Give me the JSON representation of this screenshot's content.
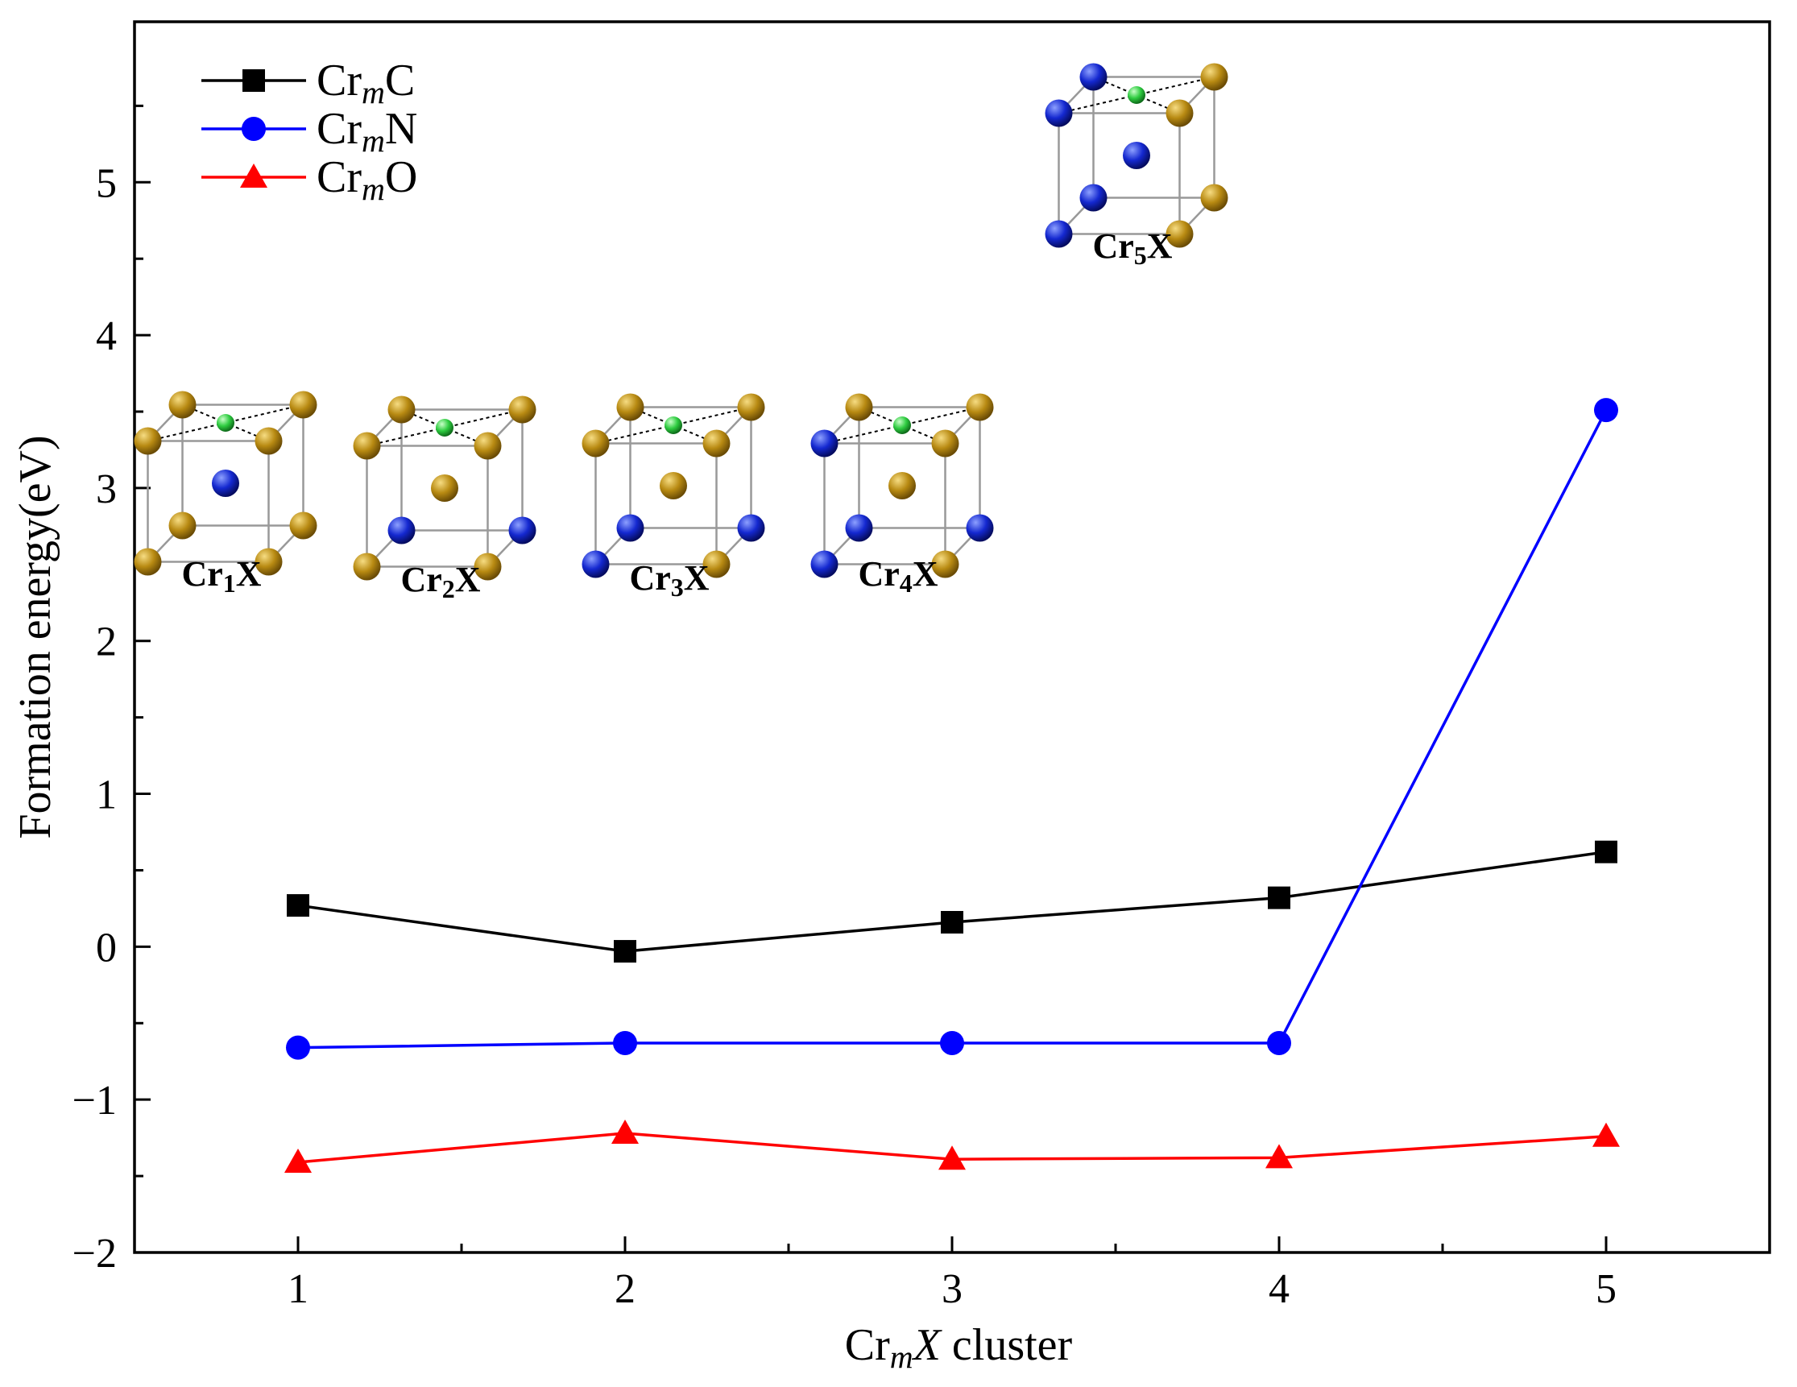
{
  "chart_data": {
    "type": "line",
    "x": [
      1,
      2,
      3,
      4,
      5
    ],
    "x_tick_labels": [
      "1",
      "2",
      "3",
      "4",
      "5"
    ],
    "xlim": [
      0.5,
      5.5
    ],
    "ylim": [
      -2.0,
      6.05
    ],
    "y_ticks": [
      -2,
      -1,
      0,
      1,
      2,
      3,
      4,
      5
    ],
    "y_tick_labels": [
      "−2",
      "−1",
      "0",
      "1",
      "2",
      "3",
      "4",
      "5"
    ],
    "ylabel": "Formation energy(eV)",
    "xlabel": {
      "prefix": "Cr",
      "sub": "m",
      "italic": "X",
      "suffix": " cluster"
    },
    "legend_position": "top-left",
    "series": [
      {
        "name": "CrmC",
        "label": {
          "base": "Cr",
          "sub": "m",
          "elem": "C"
        },
        "color": "#000000",
        "marker": "square",
        "values": [
          0.27,
          -0.03,
          0.16,
          0.32,
          0.62
        ]
      },
      {
        "name": "CrmN",
        "label": {
          "base": "Cr",
          "sub": "m",
          "elem": "N"
        },
        "color": "#0000ff",
        "marker": "circle",
        "values": [
          -0.66,
          -0.63,
          -0.63,
          -0.63,
          3.51
        ]
      },
      {
        "name": "CrmO",
        "label": {
          "base": "Cr",
          "sub": "m",
          "elem": "O"
        },
        "color": "#ff0000",
        "marker": "triangle",
        "values": [
          -1.41,
          -1.22,
          -1.39,
          -1.38,
          -1.24
        ]
      }
    ],
    "insets": [
      {
        "label": {
          "base": "Cr",
          "sub": "1",
          "suffix": "X"
        },
        "x": 1,
        "center_atom": "N",
        "corners": [
          "Cr",
          "Cr",
          "Cr",
          "Cr",
          "Cr",
          "Cr",
          "Cr",
          "Cr"
        ]
      },
      {
        "label": {
          "base": "Cr",
          "sub": "2",
          "suffix": "X"
        },
        "x": 2,
        "center_atom": "Cr",
        "corners": [
          "Cr",
          "Cr",
          "Cr",
          "Cr",
          "N",
          "Cr",
          "Cr",
          "N"
        ]
      },
      {
        "label": {
          "base": "Cr",
          "sub": "3",
          "suffix": "X"
        },
        "x": 3,
        "center_atom": "Cr",
        "corners": [
          "Cr",
          "Cr",
          "Cr",
          "N",
          "N",
          "Cr",
          "Cr",
          "N"
        ]
      },
      {
        "label": {
          "base": "Cr",
          "sub": "4",
          "suffix": "X"
        },
        "x": 4,
        "center_atom": "Cr",
        "corners": [
          "N",
          "Cr",
          "Cr",
          "N",
          "N",
          "Cr",
          "Cr",
          "N"
        ]
      },
      {
        "label": {
          "base": "Cr",
          "sub": "5",
          "suffix": "X"
        },
        "x": 5,
        "center_atom": "N",
        "corners": [
          "N",
          "Cr",
          "Cr",
          "N",
          "N",
          "N",
          "Cr",
          "Cr"
        ]
      }
    ],
    "atom_colors": {
      "Cr": "#b88a12",
      "N": "#1428d0",
      "X": "#2ecc40"
    }
  }
}
